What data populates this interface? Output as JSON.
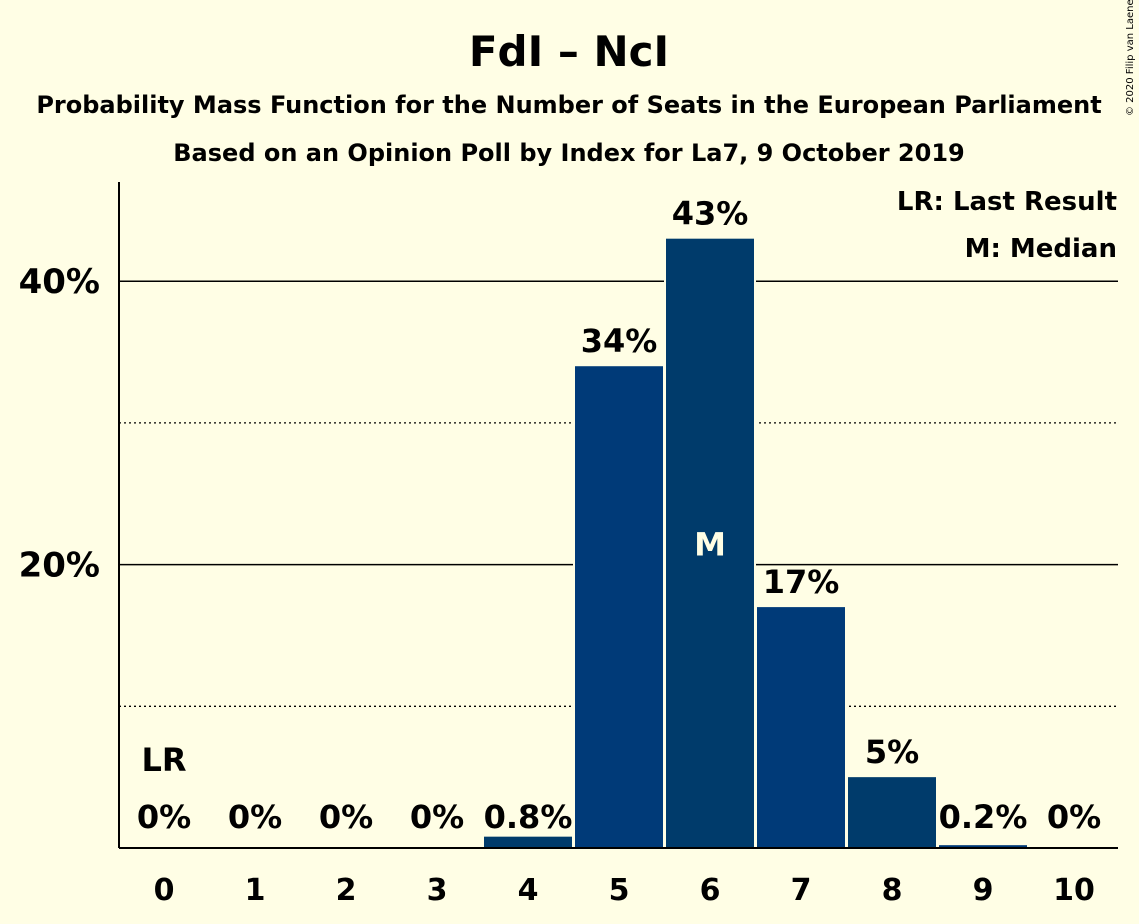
{
  "chart_data": {
    "type": "bar",
    "title": "FdI – NcI",
    "subtitle_1": "Probability Mass Function for the Number of Seats in the European Parliament",
    "subtitle_2": "Based on an Opinion Poll by Index for La7, 9 October 2019",
    "copyright": "© 2020 Filip van Laenen",
    "categories": [
      "0",
      "1",
      "2",
      "3",
      "4",
      "5",
      "6",
      "7",
      "8",
      "9",
      "10"
    ],
    "values": [
      0,
      0,
      0,
      0,
      0.8,
      34,
      43,
      17,
      5,
      0.2,
      0
    ],
    "data_labels": [
      "0%",
      "0%",
      "0%",
      "0%",
      "0.8%",
      "34%",
      "43%",
      "17%",
      "5%",
      "0.2%",
      "0%"
    ],
    "ylim": [
      0,
      47
    ],
    "y_major_ticks": [
      20,
      40
    ],
    "y_major_tick_labels": [
      "20%",
      "40%"
    ],
    "y_minor_gridlines": [
      10,
      30
    ],
    "last_result_index": 0,
    "last_result_marker": "LR",
    "median_index": 6,
    "median_marker": "M",
    "legend": [
      "LR: Last Result",
      "M: Median"
    ],
    "legend_position": "top-right",
    "colors": {
      "background": "#FFFEE5",
      "bar_primary": "#003A78",
      "bar_secondary": "#003B6B",
      "median_text": "#FFFEE5"
    }
  }
}
